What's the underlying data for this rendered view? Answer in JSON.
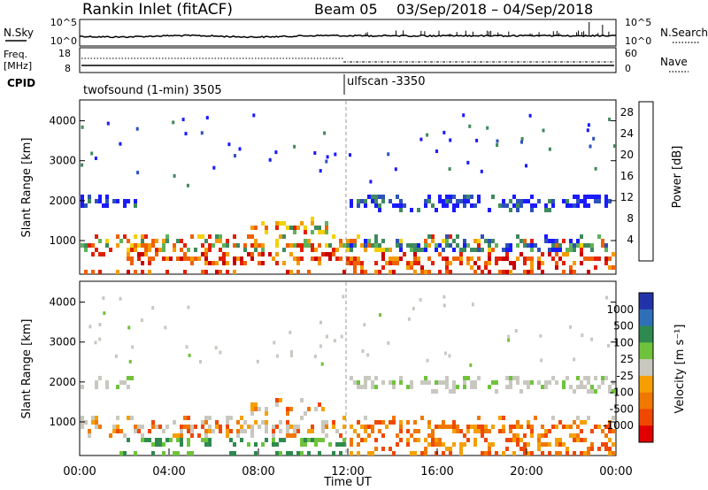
{
  "header": {
    "station": "Rankin Inlet (fitACF)",
    "beam_label": "Beam 05",
    "date_range": "03/Sep/2018 – 04/Sep/2018"
  },
  "noise_panel": {
    "left_label": "N.Sky",
    "left_ticks": [
      "10^5",
      "10^0"
    ],
    "right_label": "N.Search",
    "right_ticks": [
      "10^5",
      "10^0"
    ]
  },
  "freq_panel": {
    "left_label_1": "Freq.",
    "left_label_2": "[MHz]",
    "left_ticks": [
      "18",
      "8"
    ],
    "right_label": "Nave",
    "right_ticks": [
      "60",
      "0"
    ]
  },
  "cpid_panel": {
    "label": "CPID",
    "modes": [
      "twofsound (1-min) 3505",
      "ulfscan -3350"
    ]
  },
  "colors": {
    "power": [
      "#1a1aff",
      "#2e52b8",
      "#3f8a5e",
      "#5fb35a",
      "#f5d000",
      "#f59a00",
      "#f06000",
      "#e02000",
      "#c80000"
    ],
    "velocity": [
      "#2233aa",
      "#2f6fb8",
      "#2e8a4e",
      "#6fc33c",
      "#c8c8c0",
      "#f5a000",
      "#f07800",
      "#f04800",
      "#e00000"
    ]
  },
  "chart_data": [
    {
      "type": "heatmap",
      "title": "",
      "ylabel": "Slant Range [km]",
      "xlabel": "",
      "ylim": [
        180,
        4500
      ],
      "yticks": [
        "1000",
        "2000",
        "3000",
        "4000"
      ],
      "x_ticks": [
        "00:00",
        "04:00",
        "08:00",
        "12:00",
        "16:00",
        "20:00",
        "00:00"
      ],
      "colorbar_label": "Power [dB]",
      "colorbar_ticks": [
        "4",
        "8",
        "12",
        "16",
        "20",
        "24",
        "28"
      ],
      "colorbar_range": [
        0,
        30
      ]
    },
    {
      "type": "heatmap",
      "title": "",
      "ylabel": "Slant Range [km]",
      "xlabel": "Time UT",
      "ylim": [
        180,
        4500
      ],
      "yticks": [
        "1000",
        "2000",
        "3000",
        "4000"
      ],
      "x_ticks": [
        "00:00",
        "04:00",
        "08:00",
        "12:00",
        "16:00",
        "20:00",
        "00:00"
      ],
      "colorbar_label": "Velocity [m s⁻¹]",
      "colorbar_ticks": [
        "1000",
        "500",
        "100",
        "25",
        "-25",
        "-100",
        "-500",
        "-1000"
      ]
    }
  ]
}
